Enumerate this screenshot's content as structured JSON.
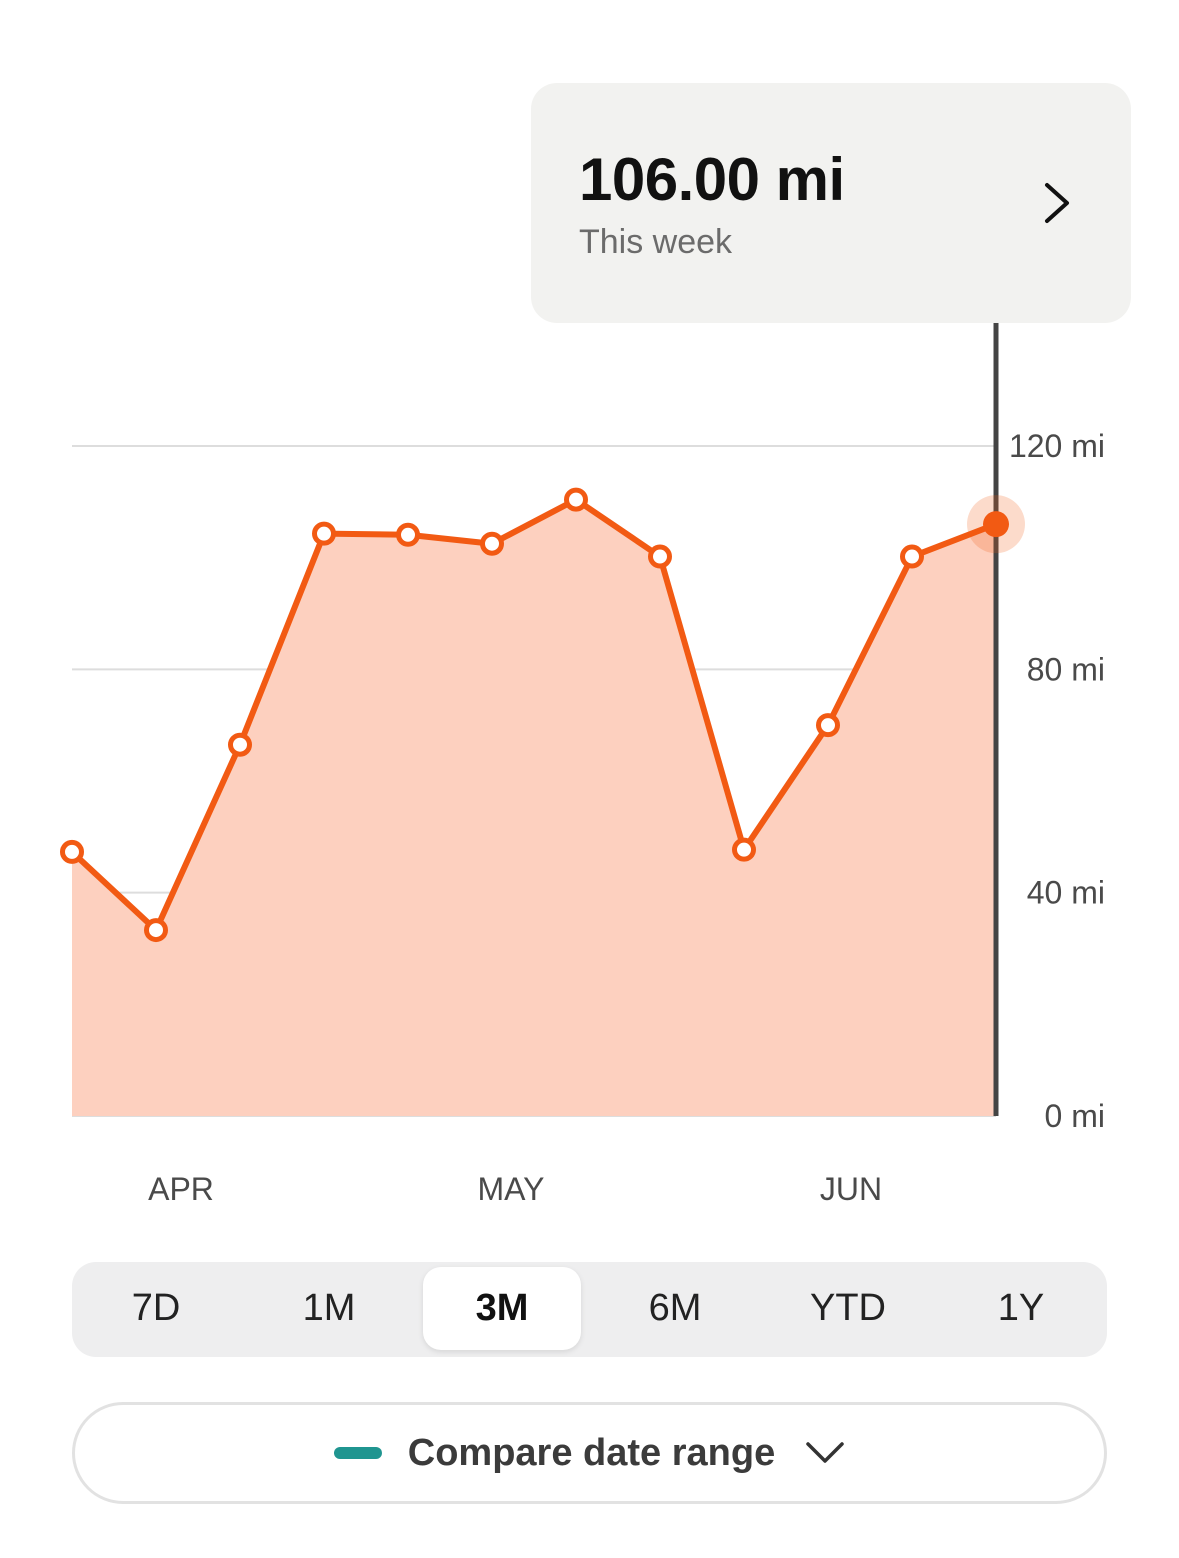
{
  "tooltip": {
    "value": "106.00 mi",
    "subtitle": "This week",
    "chevron_icon": "chevron-right-icon"
  },
  "chart_data": {
    "type": "area",
    "x_labels": [
      "APR",
      "MAY",
      "JUN"
    ],
    "y_ticks": [
      {
        "value": 0,
        "label": "0 mi"
      },
      {
        "value": 40,
        "label": "40 mi"
      },
      {
        "value": 80,
        "label": "80 mi"
      },
      {
        "value": 120,
        "label": "120 mi"
      }
    ],
    "ylim": [
      0,
      120
    ],
    "grid": true,
    "series": [
      {
        "values": [
          47.3,
          33.3,
          66.5,
          104.3,
          104.1,
          102.5,
          110.4,
          100.2,
          47.7,
          70.0,
          100.2,
          106.0
        ]
      }
    ],
    "selected_index": 11,
    "colors": {
      "line": "#f25a13",
      "fill": "#fdd0bf",
      "grid": "#dddddd",
      "cursor": "#444444"
    }
  },
  "range_selector": {
    "options": [
      "7D",
      "1M",
      "3M",
      "6M",
      "YTD",
      "1Y"
    ],
    "selected": "3M"
  },
  "compare": {
    "label": "Compare date range",
    "swatch_color": "#1f9590",
    "chevron_icon": "chevron-down-icon"
  }
}
